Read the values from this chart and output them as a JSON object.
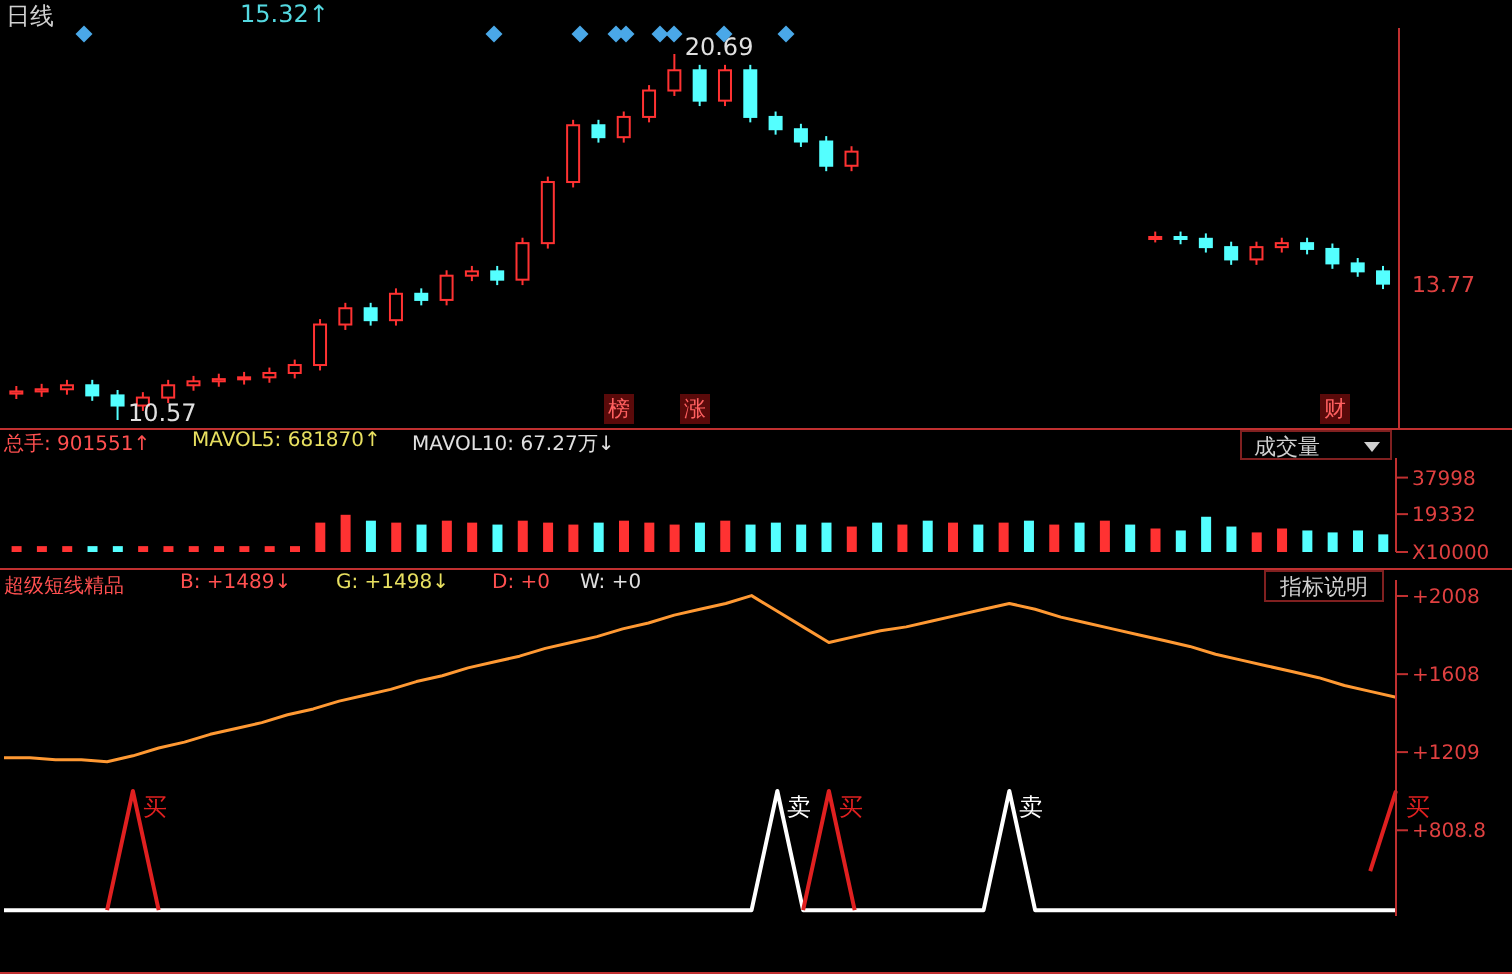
{
  "chart_data": [
    {
      "type": "candlestick",
      "title": "日线",
      "subtitle": "15.32↑",
      "tick_labels": false,
      "categories": [
        null,
        null,
        null,
        null,
        null,
        null,
        null,
        null,
        null,
        null,
        null,
        null,
        null,
        null,
        null,
        null,
        null,
        null,
        null,
        null,
        null,
        null,
        null,
        null,
        null,
        null,
        null,
        null,
        null,
        null,
        null,
        null,
        null,
        null,
        null,
        null,
        null,
        null,
        null,
        null,
        null,
        null,
        null,
        null,
        null,
        null,
        null,
        null,
        null,
        null,
        null,
        null,
        null,
        null,
        null
      ],
      "ohlc": [
        [
          11.3,
          11.51,
          11.15,
          11.36
        ],
        [
          11.36,
          11.57,
          11.21,
          11.42
        ],
        [
          11.42,
          11.68,
          11.27,
          11.53
        ],
        [
          11.53,
          11.68,
          11.1,
          11.25
        ],
        [
          11.25,
          11.4,
          10.57,
          10.97
        ],
        [
          10.97,
          11.34,
          10.82,
          11.19
        ],
        [
          11.19,
          11.68,
          11.04,
          11.53
        ],
        [
          11.53,
          11.79,
          11.38,
          11.64
        ],
        [
          11.64,
          11.85,
          11.49,
          11.7
        ],
        [
          11.7,
          11.9,
          11.55,
          11.75
        ],
        [
          11.75,
          12.02,
          11.6,
          11.87
        ],
        [
          11.87,
          12.24,
          11.72,
          12.09
        ],
        [
          12.09,
          13.36,
          11.94,
          13.21
        ],
        [
          13.21,
          13.81,
          13.06,
          13.66
        ],
        [
          13.66,
          13.81,
          13.18,
          13.33
        ],
        [
          13.33,
          14.21,
          13.18,
          14.06
        ],
        [
          14.06,
          14.21,
          13.74,
          13.89
        ],
        [
          13.89,
          14.71,
          13.74,
          14.56
        ],
        [
          14.56,
          14.83,
          14.41,
          14.68
        ],
        [
          14.68,
          14.83,
          14.3,
          14.45
        ],
        [
          14.45,
          15.61,
          14.3,
          15.46
        ],
        [
          15.46,
          17.3,
          15.31,
          17.15
        ],
        [
          17.15,
          18.87,
          17.0,
          18.72
        ],
        [
          18.72,
          18.87,
          18.24,
          18.39
        ],
        [
          18.39,
          19.1,
          18.24,
          18.95
        ],
        [
          18.95,
          19.83,
          18.8,
          19.68
        ],
        [
          19.68,
          20.69,
          19.53,
          20.24
        ],
        [
          20.24,
          20.39,
          19.25,
          19.4
        ],
        [
          19.4,
          20.39,
          19.25,
          20.24
        ],
        [
          20.24,
          20.39,
          18.8,
          18.95
        ],
        [
          18.95,
          19.1,
          18.46,
          18.61
        ],
        [
          18.61,
          18.76,
          18.12,
          18.27
        ],
        [
          18.27,
          18.42,
          17.45,
          17.6
        ],
        [
          17.6,
          18.14,
          17.45,
          17.99
        ],
        null,
        null,
        null,
        null,
        null,
        null,
        null,
        null,
        null,
        null,
        null,
        [
          15.6,
          15.78,
          15.48,
          15.63
        ],
        [
          15.63,
          15.78,
          15.43,
          15.58
        ],
        [
          15.58,
          15.73,
          15.2,
          15.35
        ],
        [
          15.35,
          15.5,
          14.86,
          15.01
        ],
        [
          15.01,
          15.5,
          14.86,
          15.35
        ],
        [
          15.35,
          15.61,
          15.2,
          15.46
        ],
        [
          15.46,
          15.61,
          15.15,
          15.3
        ],
        [
          15.3,
          15.45,
          14.75,
          14.9
        ],
        [
          14.9,
          15.05,
          14.53,
          14.68
        ],
        [
          14.68,
          14.83,
          14.19,
          14.34
        ]
      ],
      "colors": [
        "#ff3232",
        "#ff3232",
        "#ff3232",
        "#54ffff",
        "#54ffff",
        "#ff3232",
        "#ff3232",
        "#ff3232",
        "#ff3232",
        "#ff3232",
        "#ff3232",
        "#ff3232",
        "#ff3232",
        "#ff3232",
        "#54ffff",
        "#ff3232",
        "#54ffff",
        "#ff3232",
        "#ff3232",
        "#54ffff",
        "#ff3232",
        "#ff3232",
        "#ff3232",
        "#54ffff",
        "#ff3232",
        "#ff3232",
        "#ff3232",
        "#54ffff",
        "#ff3232",
        "#54ffff",
        "#54ffff",
        "#54ffff",
        "#54ffff",
        "#ff3232",
        null,
        null,
        null,
        null,
        null,
        null,
        null,
        null,
        null,
        null,
        null,
        "#ff3232",
        "#54ffff",
        "#54ffff",
        "#54ffff",
        "#ff3232",
        "#ff3232",
        "#54ffff",
        "#54ffff",
        "#54ffff",
        "#54ffff"
      ],
      "annotations": [
        "20.69",
        "10.57",
        "13.77",
        "榜",
        "涨",
        "财"
      ]
    },
    {
      "type": "bar",
      "tick_labels": "y",
      "ylim": [
        0,
        48000
      ],
      "yticks": [
        {
          "value": 0,
          "label": "X10000"
        },
        19332,
        37998
      ],
      "categories": [
        null,
        null,
        null,
        null,
        null,
        null,
        null,
        null,
        null,
        null,
        null,
        null,
        null,
        null,
        null,
        null,
        null,
        null,
        null,
        null,
        null,
        null,
        null,
        null,
        null,
        null,
        null,
        null,
        null,
        null,
        null,
        null,
        null,
        null,
        null,
        null,
        null,
        null,
        null,
        null,
        null,
        null,
        null,
        null,
        null,
        null,
        null,
        null,
        null,
        null,
        null,
        null,
        null,
        null,
        null
      ],
      "values": [
        3000,
        3000,
        3000,
        3000,
        3000,
        3000,
        3000,
        3000,
        3000,
        3000,
        3000,
        3000,
        15000,
        19000,
        16000,
        15000,
        14000,
        16000,
        15000,
        14000,
        16000,
        15000,
        14000,
        15000,
        16000,
        15000,
        14000,
        15000,
        16000,
        14000,
        15000,
        14000,
        15000,
        13000,
        15000,
        14000,
        16000,
        15000,
        14000,
        15000,
        16000,
        14000,
        15000,
        16000,
        14000,
        12000,
        11000,
        18000,
        13000,
        10000,
        12000,
        11000,
        10000,
        11000,
        9000
      ],
      "colors": [
        "#ff3232",
        "#ff3232",
        "#ff3232",
        "#54ffff",
        "#54ffff",
        "#ff3232",
        "#ff3232",
        "#ff3232",
        "#ff3232",
        "#ff3232",
        "#ff3232",
        "#ff3232",
        "#ff3232",
        "#ff3232",
        "#54ffff",
        "#ff3232",
        "#54ffff",
        "#ff3232",
        "#ff3232",
        "#54ffff",
        "#ff3232",
        "#ff3232",
        "#ff3232",
        "#54ffff",
        "#ff3232",
        "#ff3232",
        "#ff3232",
        "#54ffff",
        "#ff3232",
        "#54ffff",
        "#54ffff",
        "#54ffff",
        "#54ffff",
        "#ff3232",
        "#54ffff",
        "#ff3232",
        "#54ffff",
        "#ff3232",
        "#54ffff",
        "#ff3232",
        "#54ffff",
        "#ff3232",
        "#54ffff",
        "#ff3232",
        "#54ffff",
        "#ff3232",
        "#54ffff",
        "#54ffff",
        "#54ffff",
        "#ff3232",
        "#ff3232",
        "#54ffff",
        "#54ffff",
        "#54ffff",
        "#54ffff"
      ],
      "annotations": [
        "总手: 901551↑",
        "MAVOL5: 681870↑",
        "MAVOL10: 67.27万↓",
        "成交量"
      ]
    },
    {
      "type": "line",
      "title": "超级短线精品",
      "tick_labels": "y",
      "ylim": [
        370,
        2090
      ],
      "yticks": [
        {
          "value": 808.8,
          "label": "+808.8"
        },
        {
          "value": 1209,
          "label": "+1209"
        },
        {
          "value": 1608,
          "label": "+1608"
        },
        {
          "value": 2008,
          "label": "+2008"
        }
      ],
      "categories": [
        null,
        null,
        null,
        null,
        null,
        null,
        null,
        null,
        null,
        null,
        null,
        null,
        null,
        null,
        null,
        null,
        null,
        null,
        null,
        null,
        null,
        null,
        null,
        null,
        null,
        null,
        null,
        null,
        null,
        null,
        null,
        null,
        null,
        null,
        null,
        null,
        null,
        null,
        null,
        null,
        null,
        null,
        null,
        null,
        null,
        null,
        null,
        null,
        null,
        null,
        null,
        null,
        null,
        null,
        null
      ],
      "series": [
        {
          "color": "#ff9933",
          "values": [
            1180,
            1180,
            1170,
            1170,
            1160,
            1190,
            1230,
            1260,
            1300,
            1330,
            1360,
            1400,
            1430,
            1470,
            1500,
            1530,
            1570,
            1600,
            1640,
            1670,
            1700,
            1740,
            1770,
            1800,
            1840,
            1870,
            1910,
            1940,
            1970,
            2010,
            1930,
            1850,
            1770,
            1800,
            1830,
            1850,
            1880,
            1910,
            1940,
            1970,
            1940,
            1900,
            1870,
            1840,
            1810,
            1780,
            1750,
            1710,
            1680,
            1650,
            1620,
            1590,
            1550,
            1520,
            1490
          ]
        },
        {
          "color": "#ffffff",
          "values": [
            400,
            400,
            400,
            400,
            400,
            400,
            400,
            400,
            400,
            400,
            400,
            400,
            400,
            400,
            400,
            400,
            400,
            400,
            400,
            400,
            400,
            400,
            400,
            400,
            400,
            400,
            400,
            400,
            400,
            400,
            1010,
            400,
            400,
            400,
            400,
            400,
            400,
            400,
            400,
            1010,
            400,
            400,
            400,
            400,
            400,
            400,
            400,
            400,
            400,
            400,
            400,
            400,
            400,
            400,
            400
          ]
        },
        {
          "color": "#e02020",
          "values": [
            null,
            null,
            null,
            null,
            400,
            1010,
            400,
            null,
            null,
            null,
            null,
            null,
            null,
            null,
            null,
            null,
            null,
            null,
            null,
            null,
            null,
            null,
            null,
            null,
            null,
            null,
            null,
            null,
            null,
            null,
            null,
            400,
            1010,
            400,
            null,
            null,
            null,
            null,
            null,
            null,
            null,
            null,
            null,
            null,
            null,
            null,
            null,
            null,
            null,
            null,
            null,
            null,
            null,
            600,
            1010
          ]
        }
      ],
      "annotations": [
        "B: +1489↓",
        "G: +1498↓",
        "D: +0",
        "W: +0",
        "指标说明",
        "买",
        "卖",
        "买",
        "卖",
        "买"
      ]
    }
  ]
}
